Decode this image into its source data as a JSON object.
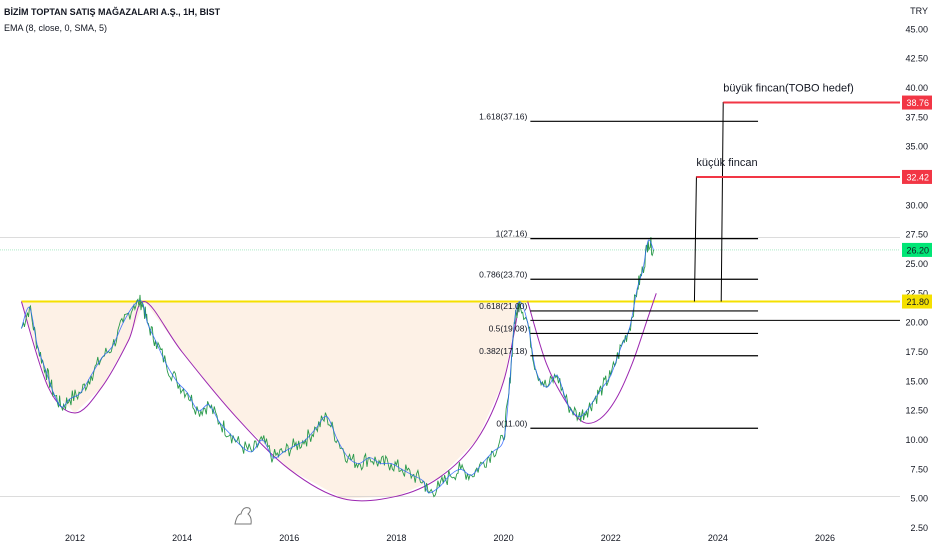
{
  "header": {
    "title": "BİZİM TOPTAN SATIŞ MAĞAZALARI A.Ş., 1H, BIST",
    "indicator": "EMA (8, close, 0, SMA, 5)"
  },
  "currency_label": "TRY",
  "colors": {
    "price_line": "#2a9a4a",
    "ema_line": "#2962ff",
    "cup_arc": "#9c27b0",
    "neckline": "#f5e000",
    "cup_fill": "#fdf1e6",
    "fib_line": "#000000",
    "target_line": "#f23645",
    "current_price": "#00e676"
  },
  "chart_data": {
    "type": "line",
    "title": "BİZİM TOPTAN SATIŞ MAĞAZALARI A.Ş., 1H, BIST",
    "xlabel": "",
    "ylabel": "TRY",
    "xlim": [
      2010.6,
      2027.4
    ],
    "ylim": [
      2.5,
      47.5
    ],
    "x_ticks": [
      2012,
      2014,
      2016,
      2018,
      2020,
      2022,
      2024,
      2026
    ],
    "y_ticks": [
      2.5,
      5.0,
      7.5,
      10.0,
      12.5,
      15.0,
      17.5,
      20.0,
      22.5,
      25.0,
      27.5,
      30.0,
      32.5,
      35.0,
      37.5,
      40.0,
      42.5,
      45.0
    ],
    "grid": false,
    "series": [
      {
        "key": "price",
        "x": [
          2011.0,
          2011.15,
          2011.3,
          2011.45,
          2011.6,
          2011.75,
          2011.9,
          2012.1,
          2012.3,
          2012.5,
          2012.7,
          2012.9,
          2013.1,
          2013.25,
          2013.35,
          2013.5,
          2013.7,
          2013.9,
          2014.1,
          2014.3,
          2014.5,
          2014.7,
          2014.9,
          2015.1,
          2015.3,
          2015.5,
          2015.7,
          2015.9,
          2016.1,
          2016.3,
          2016.5,
          2016.7,
          2016.9,
          2017.1,
          2017.3,
          2017.5,
          2017.7,
          2017.9,
          2018.1,
          2018.3,
          2018.5,
          2018.6,
          2018.8,
          2019.0,
          2019.2,
          2019.4,
          2019.6,
          2019.8,
          2020.0,
          2020.1,
          2020.2,
          2020.3,
          2020.45,
          2020.6,
          2020.8,
          2021.0,
          2021.2,
          2021.4,
          2021.55,
          2021.7,
          2021.85,
          2022.0,
          2022.2,
          2022.35,
          2022.5,
          2022.6,
          2022.7,
          2022.8
        ],
        "values": [
          19.5,
          21.3,
          18.0,
          16.0,
          14.0,
          12.8,
          13.5,
          14.0,
          15.5,
          17.0,
          18.0,
          20.0,
          21.5,
          21.8,
          20.0,
          18.5,
          16.5,
          15.0,
          14.0,
          12.5,
          13.0,
          11.5,
          10.5,
          9.5,
          9.0,
          10.0,
          8.5,
          9.0,
          9.5,
          10.0,
          11.0,
          12.0,
          10.0,
          8.5,
          8.0,
          8.5,
          8.0,
          8.0,
          7.5,
          7.0,
          6.5,
          5.5,
          6.0,
          7.0,
          7.5,
          7.0,
          8.0,
          9.0,
          10.0,
          14.0,
          20.0,
          21.8,
          20.0,
          16.0,
          14.5,
          15.5,
          13.0,
          12.0,
          12.5,
          13.5,
          14.5,
          15.5,
          18.0,
          19.5,
          23.0,
          24.5,
          27.0,
          26.2
        ]
      },
      {
        "key": "cup",
        "x": [
          2011.0,
          2011.5,
          2012.0,
          2012.5,
          2013.0,
          2013.3,
          2014.0,
          2015.0,
          2016.0,
          2017.0,
          2018.0,
          2018.8,
          2019.5,
          2020.0,
          2020.3
        ],
        "values": [
          21.8,
          14.5,
          12.3,
          14.5,
          18.5,
          21.8,
          17.5,
          12.0,
          7.5,
          5.0,
          5.2,
          6.8,
          10.0,
          15.0,
          21.8
        ]
      },
      {
        "key": "handle",
        "x": [
          2020.45,
          2020.8,
          2021.2,
          2021.5,
          2021.8,
          2022.1,
          2022.4,
          2022.7,
          2022.85
        ],
        "values": [
          21.8,
          16.5,
          13.0,
          11.5,
          11.8,
          13.5,
          16.5,
          20.5,
          22.5
        ]
      }
    ],
    "fib_levels": [
      {
        "label": "1.618(37.16)",
        "value": 37.16
      },
      {
        "label": "1(27.16)",
        "value": 27.16
      },
      {
        "label": "0.786(23.70)",
        "value": 23.7
      },
      {
        "label": "0.618(21.00)",
        "value": 21.0
      },
      {
        "label": "0.5(19.08)",
        "value": 19.08
      },
      {
        "label": "0.382(17.18)",
        "value": 17.18
      },
      {
        "label": "0(11.00)",
        "value": 11.0
      }
    ],
    "neckline_value": 21.8,
    "annotations": [
      {
        "text": "büyük fincan(TOBO hedef)",
        "value": 38.76
      },
      {
        "text": "küçük fincan",
        "value": 32.42
      }
    ],
    "price_tags": [
      {
        "label": "38.76",
        "value": 38.76,
        "color": "#f23645",
        "text_color": "#ffffff"
      },
      {
        "label": "32.42",
        "value": 32.42,
        "color": "#f23645",
        "text_color": "#ffffff"
      },
      {
        "label": "26.20",
        "value": 26.2,
        "color": "#00e676",
        "text_color": "#131722"
      },
      {
        "label": "21.80",
        "value": 21.8,
        "color": "#f5e000",
        "text_color": "#131722"
      }
    ]
  }
}
